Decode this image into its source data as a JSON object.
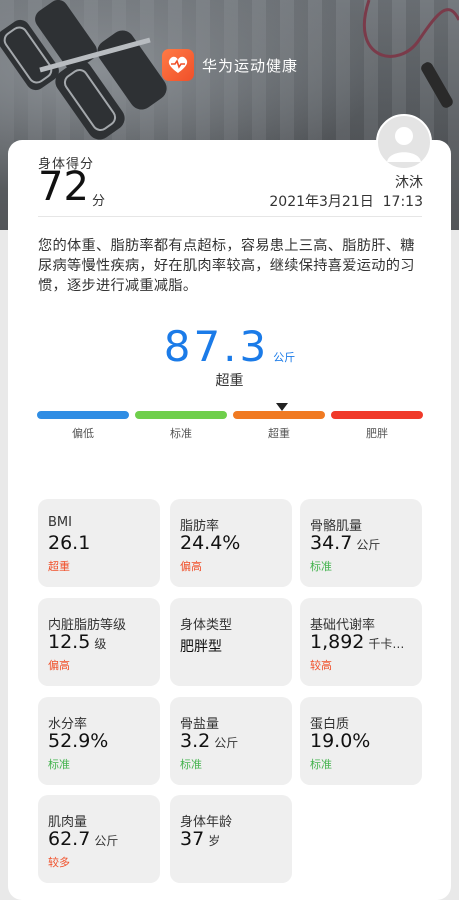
{
  "header": {
    "app_name": "华为运动健康",
    "logo_icon": "heart-icon",
    "avatar_icon": "user-avatar-icon"
  },
  "score": {
    "label": "身体得分",
    "value": "72",
    "unit": "分"
  },
  "user": {
    "name": "沐沐",
    "date": "2021年3月21日",
    "time": "17:13"
  },
  "summary": "您的体重、脂肪率都有点超标，容易患上三高、脂肪肝、糖尿病等慢性疾病，好在肌肉率较高，继续保持喜爱运动的习惯，逐步进行减重减脂。",
  "weight": {
    "value": "87.3",
    "unit": "公斤",
    "status": "超重",
    "color": "#1b7be8"
  },
  "scale": {
    "segments": [
      {
        "label": "偏低",
        "color": "#2f8de4"
      },
      {
        "label": "标准",
        "color": "#6fcf4b"
      },
      {
        "label": "超重",
        "color": "#f07a22"
      },
      {
        "label": "肥胖",
        "color": "#f03a2a"
      }
    ],
    "active_segment": 2
  },
  "metrics": [
    {
      "label": "BMI",
      "value": "26.1",
      "unit": "",
      "status": "超重",
      "status_color": "#f0502a"
    },
    {
      "label": "脂肪率",
      "value": "24.4%",
      "unit": "",
      "status": "偏高",
      "status_color": "#f0502a"
    },
    {
      "label": "骨骼肌量",
      "value": "34.7",
      "unit": "公斤",
      "status": "标准",
      "status_color": "#46b450"
    },
    {
      "label": "内脏脂肪等级",
      "value": "12.5",
      "unit": "级",
      "status": "偏高",
      "status_color": "#f0502a"
    },
    {
      "label": "身体类型",
      "value": "肥胖型",
      "unit": "",
      "status": "",
      "status_color": ""
    },
    {
      "label": "基础代谢率",
      "value": "1,892",
      "unit": "千卡…",
      "status": "较高",
      "status_color": "#f0502a"
    },
    {
      "label": "水分率",
      "value": "52.9%",
      "unit": "",
      "status": "标准",
      "status_color": "#46b450"
    },
    {
      "label": "骨盐量",
      "value": "3.2",
      "unit": "公斤",
      "status": "标准",
      "status_color": "#46b450"
    },
    {
      "label": "蛋白质",
      "value": "19.0%",
      "unit": "",
      "status": "标准",
      "status_color": "#46b450"
    },
    {
      "label": "肌肉量",
      "value": "62.7",
      "unit": "公斤",
      "status": "较多",
      "status_color": "#f0502a"
    },
    {
      "label": "身体年龄",
      "value": "37",
      "unit": "岁",
      "status": "",
      "status_color": ""
    }
  ]
}
